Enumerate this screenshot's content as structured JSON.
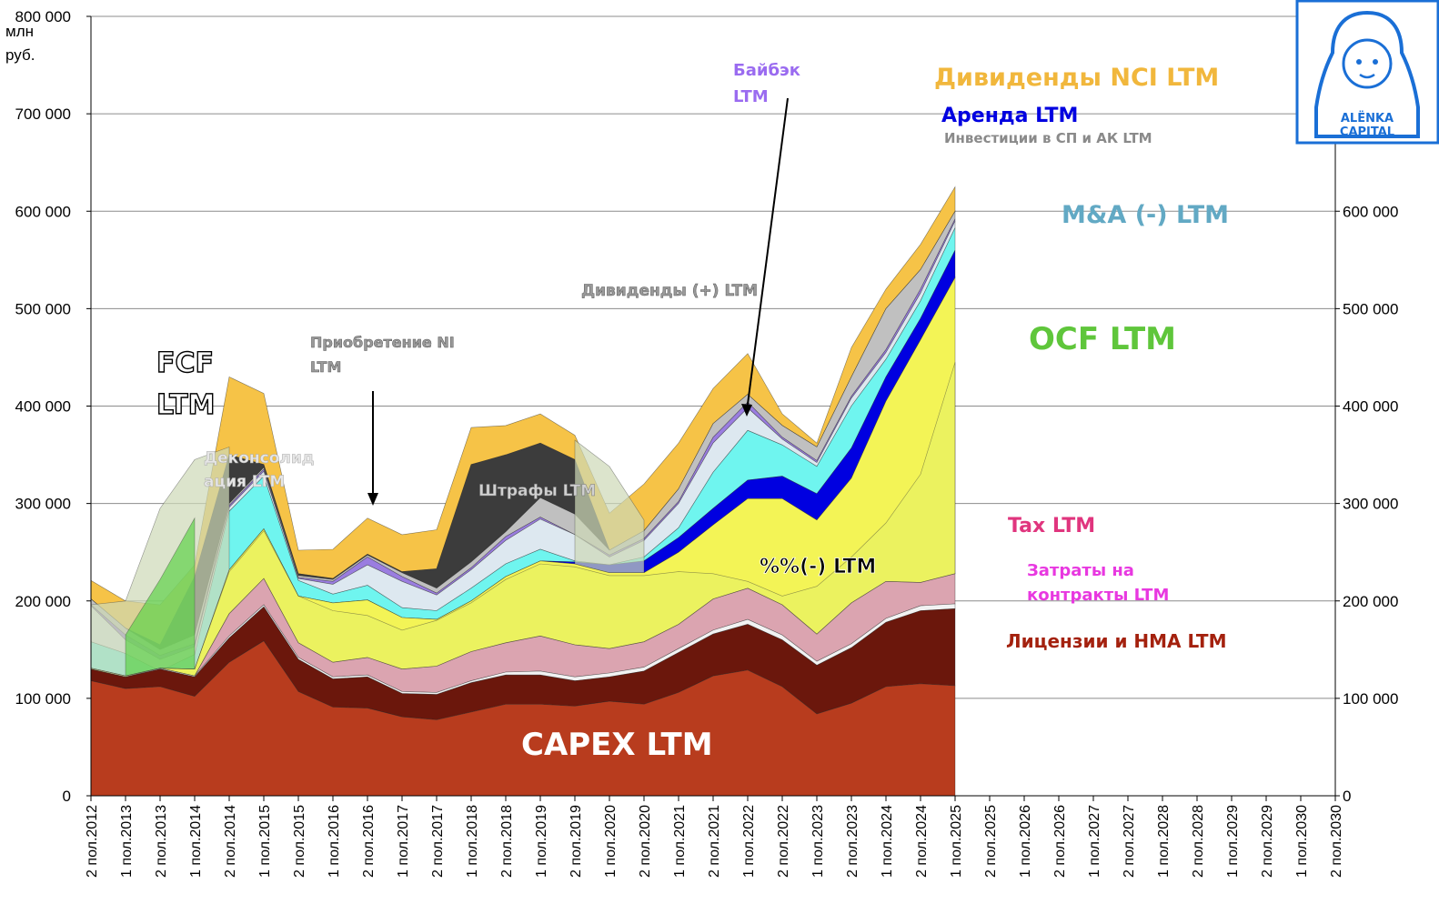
{
  "chart_data": {
    "type": "area",
    "title": "",
    "ylabel": "млн руб.",
    "y_unit_top": "800 000",
    "y_unit_line1": "млн",
    "y_unit_line2": "руб.",
    "ylim": [
      0,
      800000
    ],
    "y2lim": [
      0,
      800000
    ],
    "yticks_left": [
      0,
      100000,
      200000,
      300000,
      400000,
      500000,
      600000,
      700000,
      800000
    ],
    "ytick_labels_left": [
      "0",
      "100 000",
      "200 000",
      "300 000",
      "400 000",
      "500 000",
      "600 000",
      "700 000",
      "800 000"
    ],
    "yticks_right": [
      0,
      100000,
      200000,
      300000,
      400000,
      500000,
      600000
    ],
    "ytick_labels_right": [
      "0",
      "100 000",
      "200 000",
      "300 000",
      "400 000",
      "500 000",
      "600 000"
    ],
    "categories": [
      "2 пол.2012",
      "1 пол.2013",
      "2 пол.2013",
      "1 пол.2014",
      "2 пол.2014",
      "1 пол.2015",
      "2 пол.2015",
      "1 пол.2016",
      "2 пол.2016",
      "1 пол.2017",
      "2 пол.2017",
      "1 пол.2018",
      "2 пол.2018",
      "1 пол.2019",
      "2 пол.2019",
      "1 пол.2020",
      "2 пол.2020",
      "1 пол.2021",
      "2 пол.2021",
      "1 пол.2022",
      "2 пол.2022",
      "1 пол.2023",
      "2 пол.2023",
      "1 пол.2024",
      "2 пол.2024",
      "1 пол.2025",
      "2 пол.2025",
      "1 пол.2026",
      "2 пол.2026",
      "1 пол.2027",
      "2 пол.2027",
      "1 пол.2028",
      "2 пол.2028",
      "1 пол.2029",
      "2 пол.2029",
      "1 пол.2030",
      "2 пол.2030"
    ],
    "stack_tops": [
      {
        "name": "CAPEX LTM",
        "color": "#b83c1e",
        "values": [
          118000,
          110000,
          112000,
          102000,
          137000,
          159000,
          107000,
          91000,
          90000,
          81000,
          78000,
          86000,
          94000,
          94000,
          92000,
          97000,
          94000,
          106000,
          123000,
          129000,
          112000,
          84000,
          95000,
          112000,
          115000,
          113000
        ]
      },
      {
        "name": "Лицензии и НМА LTM",
        "color": "#6b170c",
        "values": [
          130000,
          122000,
          130000,
          122000,
          162000,
          194000,
          140000,
          120000,
          122000,
          105000,
          104000,
          116000,
          124000,
          124000,
          118000,
          122000,
          128000,
          147000,
          166000,
          176000,
          160000,
          134000,
          152000,
          178000,
          190000,
          192000
        ]
      },
      {
        "name": "Затраты на контракты LTM",
        "color": "#f2f2f2",
        "values": [
          131000,
          123000,
          131000,
          123000,
          164000,
          196000,
          142000,
          122000,
          124000,
          107000,
          106000,
          118000,
          127000,
          128000,
          122000,
          126000,
          132000,
          151000,
          170000,
          181000,
          165000,
          138000,
          156000,
          182000,
          195000,
          197000
        ]
      },
      {
        "name": "Tax LTM",
        "color": "#dba4b0",
        "values": [
          131000,
          123000,
          131000,
          123000,
          187000,
          223000,
          157000,
          137000,
          142000,
          130000,
          133000,
          148000,
          157000,
          164000,
          155000,
          151000,
          158000,
          176000,
          202000,
          213000,
          196000,
          166000,
          198000,
          220000,
          219000,
          228000
        ]
      },
      {
        "name": "%%(-) LTM",
        "color": "#f3f456",
        "values": [
          131000,
          123000,
          131000,
          130000,
          232000,
          274000,
          205000,
          198000,
          201000,
          183000,
          181000,
          200000,
          225000,
          241000,
          238000,
          229000,
          229000,
          250000,
          278000,
          305000,
          305000,
          283000,
          326000,
          405000,
          468000,
          532000
        ]
      },
      {
        "name": "Аренда LTM",
        "color": "#0000e0",
        "values": [
          131000,
          123000,
          131000,
          130000,
          232000,
          274000,
          205000,
          198000,
          201000,
          183000,
          181000,
          200000,
          225000,
          241000,
          240000,
          237000,
          241000,
          265000,
          295000,
          324000,
          328000,
          310000,
          357000,
          430000,
          490000,
          560000
        ]
      },
      {
        "name": "M&A (-) LTM",
        "color": "#6ff5ef",
        "values": [
          158000,
          146000,
          128000,
          145000,
          292000,
          328000,
          221000,
          207000,
          216000,
          193000,
          190000,
          213000,
          238000,
          253000,
          241000,
          237000,
          245000,
          275000,
          332000,
          375000,
          360000,
          338000,
          400000,
          448000,
          508000,
          583000
        ]
      },
      {
        "name": "Инвестиции в СП и АК LTM",
        "color": "#dde8f0",
        "values": [
          195000,
          160000,
          140000,
          153000,
          296000,
          333000,
          223000,
          217000,
          237000,
          220000,
          206000,
          232000,
          262000,
          284000,
          268000,
          245000,
          262000,
          300000,
          362000,
          398000,
          366000,
          342000,
          408000,
          455000,
          516000,
          590000
        ]
      },
      {
        "name": "Байбэк LTM",
        "color": "#9a7de0",
        "values": [
          196000,
          165000,
          144000,
          156000,
          298000,
          335000,
          224000,
          220000,
          245000,
          225000,
          208000,
          234000,
          266000,
          286000,
          268000,
          247000,
          264000,
          302000,
          368000,
          404000,
          368000,
          344000,
          410000,
          458000,
          520000,
          592000
        ]
      },
      {
        "name": "Дивиденды (+) LTM",
        "color": "#c0c0c0",
        "values": [
          202000,
          172000,
          150000,
          165000,
          300000,
          337000,
          226000,
          222000,
          247000,
          229000,
          213000,
          240000,
          271000,
          306000,
          289000,
          252000,
          272000,
          315000,
          382000,
          412000,
          380000,
          358000,
          430000,
          500000,
          540000,
          600000
        ]
      },
      {
        "name": "Штрафы LTM",
        "color": "#3c3c3c",
        "values": [
          202000,
          172000,
          155000,
          225000,
          350000,
          340000,
          228000,
          223000,
          248000,
          230000,
          233000,
          340000,
          350000,
          362000,
          345000,
          252000,
          272000,
          315000,
          382000,
          412000,
          380000,
          358000,
          430000,
          500000,
          540000,
          600000
        ]
      },
      {
        "name": "Дивиденды NCI LTM",
        "color": "#f6c347",
        "values": [
          221000,
          200000,
          196000,
          237000,
          430000,
          413000,
          252000,
          253000,
          285000,
          268000,
          273000,
          378000,
          380000,
          392000,
          370000,
          290000,
          320000,
          362000,
          418000,
          454000,
          392000,
          362000,
          460000,
          520000,
          566000,
          625000
        ]
      }
    ],
    "overlay_series": [
      {
        "name": "FCF LTM",
        "color": "#cdd9b6",
        "values": [
          196000,
          200000,
          295000,
          345000,
          358000,
          null,
          null,
          null,
          null,
          null,
          null,
          null,
          null,
          null,
          365000,
          338000,
          283000
        ]
      },
      {
        "name": "Деконсолидация LTM",
        "color": "#5fd14a",
        "values": [
          null,
          165000,
          222000,
          285000,
          null
        ]
      },
      {
        "name": "OCF LTM",
        "color": "#e2f06a",
        "values": [
          130000,
          122000,
          131000,
          130000,
          230000,
          272000,
          205000,
          190000,
          185000,
          170000,
          180000,
          198000,
          222000,
          238000,
          235000,
          226000,
          226000,
          230000,
          228000,
          220000,
          205000,
          215000,
          245000,
          280000,
          330000,
          445000
        ]
      }
    ],
    "series_labels": {
      "capex": "CAPEX LTM",
      "licenses": "Лицензии и НМА LTM",
      "contracts_1": "Затраты на",
      "contracts_2": "контракты LTM",
      "tax": "Tax LTM",
      "interest": "%%(-) LTM",
      "ocf": "OCF LTM",
      "ma": "M&A (-) LTM",
      "investments": "Инвестиции в СП и АК LTM",
      "lease": "Аренда LTM",
      "dividends_nci": "Дивиденды NCI LTM",
      "buyback_1": "Байбэк",
      "buyback_2": "LTM",
      "dividends_plus": "Дивиденды (+) LTM",
      "ni_acq_1": "Приобретение NI",
      "ni_acq_2": "LTM",
      "fines": "Штрафы LTM",
      "fcf_1": "FCF",
      "fcf_2": "LTM",
      "decons_1": "Деконсолид",
      "decons_2": "ация LTM"
    },
    "colors": {
      "capex": "#b83c1e",
      "licenses": "#a4210e",
      "contracts": "#e838e0",
      "tax": "#e0357e",
      "ocf": "#5fc63b",
      "ma": "#62a9c4",
      "lease": "#0000e0",
      "investments": "#8a8a8a",
      "dividends_nci": "#f1b73c",
      "buyback": "#9a6bf0",
      "grey_label": "#9a9a9a"
    }
  },
  "logo": {
    "text_line1": "ALЁNKA",
    "text_line2": "CAPITAL",
    "color": "#1a6fd6"
  }
}
